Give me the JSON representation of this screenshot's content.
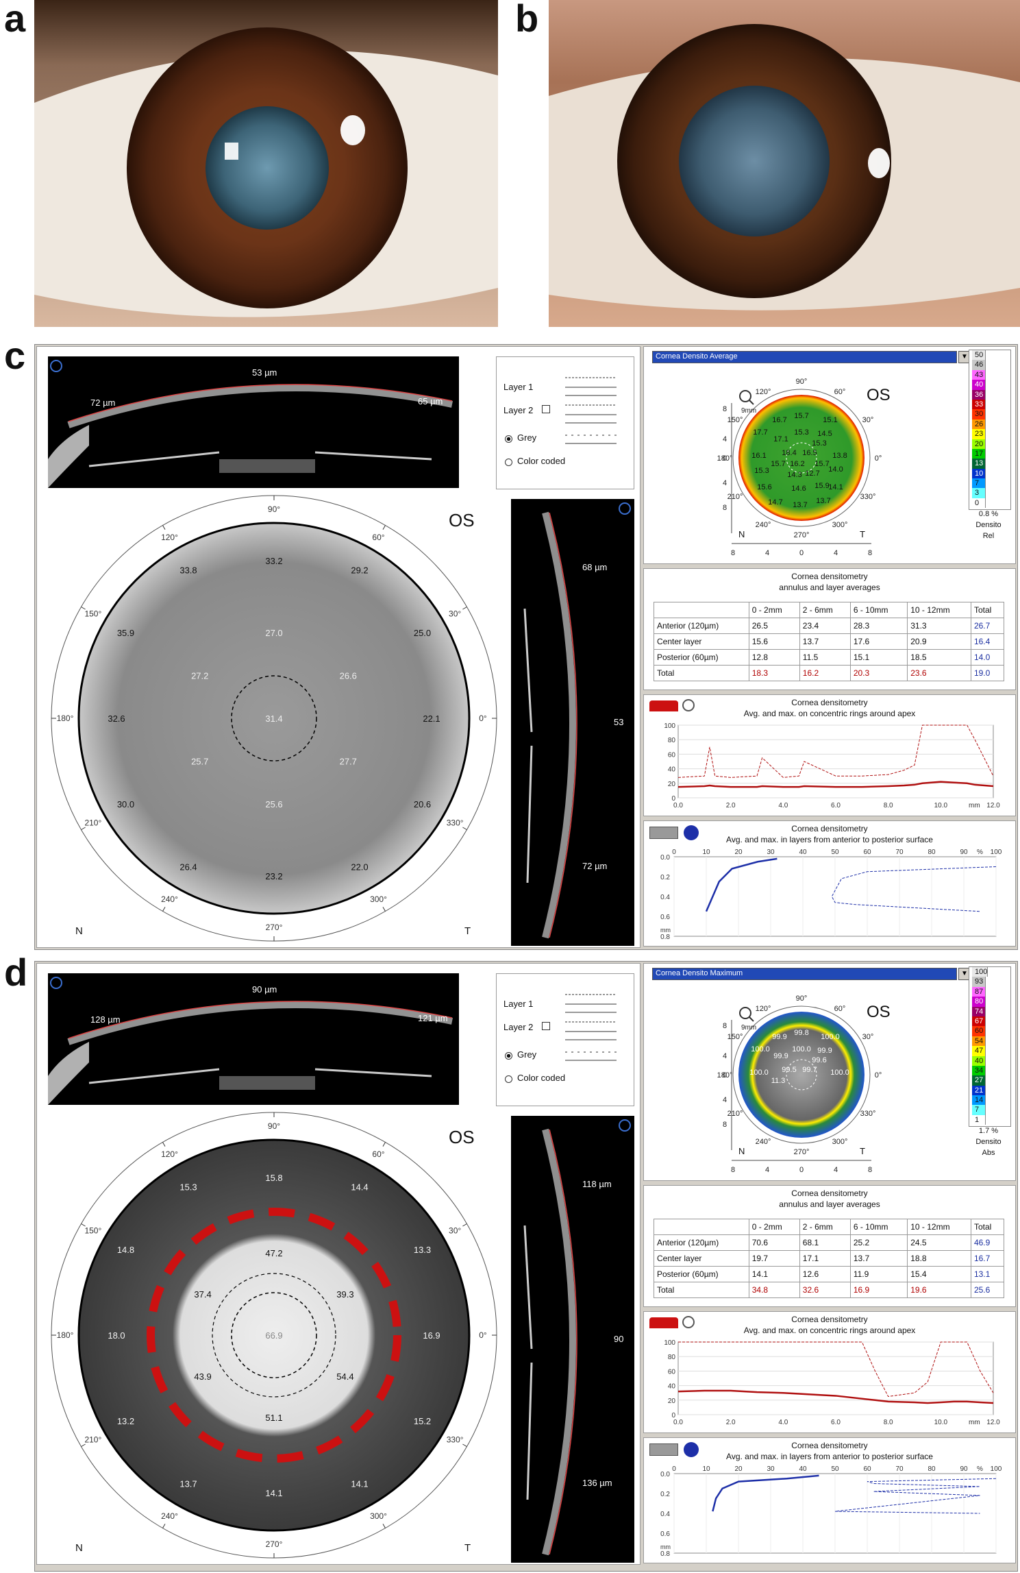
{
  "panel_letters": [
    "a",
    "b",
    "c",
    "d"
  ],
  "panels": [
    {
      "id": "c",
      "scheimpflug_top": {
        "center_thickness": "53 µm",
        "left_thickness": "72 µm",
        "right_thickness": "65 µm"
      },
      "scheimpflug_side": {
        "top_thickness": "68 µm",
        "center_thickness": "53",
        "bottom_thickness": "72 µm"
      },
      "controls": {
        "layer1": "Layer 1",
        "layer2": "Layer 2",
        "grey": "Grey",
        "color_coded": "Color coded"
      },
      "polar": {
        "eye": "OS",
        "nasal": "N",
        "temporal": "T",
        "angles": [
          "90°",
          "60°",
          "30°",
          "0°",
          "330°",
          "300°",
          "270°",
          "240°",
          "210°",
          "180°",
          "150°",
          "120°"
        ],
        "values": [
          "33.2",
          "29.2",
          "25.0",
          "22.1",
          "20.6",
          "22.0",
          "23.2",
          "26.4",
          "30.0",
          "32.6",
          "35.9",
          "33.8",
          "27.0",
          "26.6",
          "27.7",
          "25.6",
          "25.7",
          "27.2",
          "31.4"
        ],
        "highlight_ring": false
      },
      "colormap": {
        "dropdown": "Cornea Densito Average",
        "eye": "OS",
        "zoom": "9mm",
        "nasal": "N",
        "temporal": "T",
        "axis": [
          "8",
          "4",
          "0",
          "4",
          "8"
        ],
        "angles": [
          "90°",
          "60°",
          "30°",
          "0°",
          "330°",
          "300°",
          "270°",
          "240°",
          "210°",
          "180°",
          "150°",
          "120°"
        ],
        "values": [
          "15.7",
          "15.1",
          "16.7",
          "17.7",
          "15.3",
          "14.5",
          "17.1",
          "15.3",
          "16.1",
          "18.4",
          "16.5",
          "13.8",
          "15.7",
          "16.2",
          "15.7",
          "15.3",
          "14.3",
          "12.7",
          "14.0",
          "15.6",
          "15.9",
          "14.6",
          "14.1",
          "14.7",
          "13.7",
          "13.7"
        ],
        "legend": [
          {
            "label": "50",
            "color": "#e8e8e8"
          },
          {
            "label": "46",
            "color": "#c8c8c8"
          },
          {
            "label": "43",
            "color": "#ff66ff"
          },
          {
            "label": "40",
            "color": "#cc00cc"
          },
          {
            "label": "36",
            "color": "#990066"
          },
          {
            "label": "33",
            "color": "#cc0000"
          },
          {
            "label": "30",
            "color": "#ff3300"
          },
          {
            "label": "26",
            "color": "#ff9900"
          },
          {
            "label": "23",
            "color": "#ffff00"
          },
          {
            "label": "20",
            "color": "#99ff00"
          },
          {
            "label": "17",
            "color": "#00cc00"
          },
          {
            "label": "13",
            "color": "#006633"
          },
          {
            "label": "10",
            "color": "#0033cc"
          },
          {
            "label": "7",
            "color": "#0099ff"
          },
          {
            "label": "3",
            "color": "#66ffff"
          },
          {
            "label": "0",
            "color": "#ffffff"
          }
        ],
        "legend_foot": [
          "0.8 %",
          "Densito",
          "Rel"
        ]
      },
      "table": {
        "title1": "Cornea densitometry",
        "title2": "annulus and layer averages",
        "headers": [
          "",
          "0 - 2mm",
          "2 - 6mm",
          "6 - 10mm",
          "10 - 12mm",
          "Total"
        ],
        "rows": [
          [
            "Anterior (120µm)",
            "26.5",
            "23.4",
            "28.3",
            "31.3",
            "26.7"
          ],
          [
            "Center layer",
            "15.6",
            "13.7",
            "17.6",
            "20.9",
            "16.4"
          ],
          [
            "Posterior (60µm)",
            "12.8",
            "11.5",
            "15.1",
            "18.5",
            "14.0"
          ],
          [
            "Total",
            "18.3",
            "16.2",
            "20.3",
            "23.6",
            "19.0"
          ]
        ]
      },
      "rings_chart": {
        "title1": "Cornea densitometry",
        "title2": "Avg. and max. on concentric rings around apex",
        "yticks": [
          "100",
          "80",
          "60",
          "40",
          "20",
          "0"
        ],
        "xticks": [
          "0.0",
          "2.0",
          "4.0",
          "6.0",
          "8.0",
          "10.0",
          "12.0"
        ],
        "unit": "mm",
        "chart_data": {
          "type": "line",
          "x": [
            0,
            1,
            1.2,
            1.4,
            2,
            3,
            3.2,
            4,
            4.6,
            4.8,
            6,
            7,
            8,
            8.6,
            9,
            9.3,
            10,
            10.5,
            11,
            11.3,
            12
          ],
          "series": [
            {
              "values": [
                28,
                30,
                70,
                30,
                28,
                30,
                55,
                28,
                30,
                50,
                30,
                30,
                32,
                38,
                45,
                100,
                100,
                100,
                100,
                80,
                30
              ]
            },
            {
              "values": [
                15,
                16,
                17,
                16,
                15,
                15,
                16,
                15,
                15,
                16,
                15,
                15,
                16,
                17,
                18,
                20,
                22,
                21,
                20,
                18,
                16
              ]
            }
          ],
          "ylim": [
            0,
            100
          ],
          "xlim": [
            0,
            12
          ]
        }
      },
      "layers_chart": {
        "title1": "Cornea densitometry",
        "title2": "Avg. and max. in layers from anterior to posterior surface",
        "xticks": [
          "0",
          "10",
          "20",
          "30",
          "40",
          "50",
          "60",
          "70",
          "80",
          "90",
          "100"
        ],
        "yticks": [
          "0.0",
          "0.2",
          "0.4",
          "0.6",
          "0.8"
        ],
        "ylabel": "mm",
        "unit": "%",
        "chart_data": {
          "type": "line",
          "series": [
            {
              "x": [
                32,
                26,
                18,
                14,
                12,
                10
              ],
              "y": [
                0.02,
                0.05,
                0.12,
                0.25,
                0.4,
                0.55
              ]
            },
            {
              "x": [
                100,
                60,
                52,
                49,
                50,
                56,
                95
              ],
              "y": [
                0.1,
                0.15,
                0.22,
                0.4,
                0.46,
                0.48,
                0.55
              ]
            }
          ],
          "xlim": [
            0,
            100
          ],
          "ylim": [
            0,
            0.8
          ]
        }
      }
    },
    {
      "id": "d",
      "scheimpflug_top": {
        "center_thickness": "90 µm",
        "left_thickness": "128 µm",
        "right_thickness": "121 µm"
      },
      "scheimpflug_side": {
        "top_thickness": "118 µm",
        "center_thickness": "90",
        "bottom_thickness": "136 µm"
      },
      "controls": {
        "layer1": "Layer 1",
        "layer2": "Layer 2",
        "grey": "Grey",
        "color_coded": "Color coded"
      },
      "polar": {
        "eye": "OS",
        "nasal": "N",
        "temporal": "T",
        "angles": [
          "90°",
          "60°",
          "30°",
          "0°",
          "330°",
          "300°",
          "270°",
          "240°",
          "210°",
          "180°",
          "150°",
          "120°"
        ],
        "values": [
          "15.8",
          "14.4",
          "13.3",
          "16.9",
          "15.2",
          "14.1",
          "14.1",
          "13.7",
          "13.2",
          "18.0",
          "14.8",
          "15.3",
          "47.2",
          "39.3",
          "54.4",
          "51.1",
          "43.9",
          "37.4",
          "66.9"
        ],
        "highlight_ring": true
      },
      "colormap": {
        "dropdown": "Cornea Densito Maximum",
        "eye": "OS",
        "zoom": "9mm",
        "nasal": "N",
        "temporal": "T",
        "axis": [
          "8",
          "4",
          "0",
          "4",
          "8"
        ],
        "angles": [
          "90°",
          "60°",
          "30°",
          "0°",
          "330°",
          "300°",
          "270°",
          "240°",
          "210°",
          "180°",
          "150°",
          "120°"
        ],
        "values": [
          "99.8",
          "100.0",
          "99.9",
          "100.0",
          "100.0",
          "99.9",
          "99.9",
          "99.6",
          "100.0",
          "99.5",
          "99.7",
          "100.0",
          "11.3"
        ],
        "legend": [
          {
            "label": "100",
            "color": "#e8e8e8"
          },
          {
            "label": "93",
            "color": "#c8c8c8"
          },
          {
            "label": "87",
            "color": "#ff66ff"
          },
          {
            "label": "80",
            "color": "#cc00cc"
          },
          {
            "label": "74",
            "color": "#990066"
          },
          {
            "label": "67",
            "color": "#cc0000"
          },
          {
            "label": "60",
            "color": "#ff3300"
          },
          {
            "label": "54",
            "color": "#ff9900"
          },
          {
            "label": "47",
            "color": "#ffff00"
          },
          {
            "label": "40",
            "color": "#99ff00"
          },
          {
            "label": "34",
            "color": "#00cc00"
          },
          {
            "label": "27",
            "color": "#006633"
          },
          {
            "label": "21",
            "color": "#0033cc"
          },
          {
            "label": "14",
            "color": "#0099ff"
          },
          {
            "label": "7",
            "color": "#66ffff"
          },
          {
            "label": "1",
            "color": "#ffffff"
          }
        ],
        "legend_foot": [
          "1.7 %",
          "Densito",
          "Abs"
        ]
      },
      "table": {
        "title1": "Cornea densitometry",
        "title2": "annulus and layer averages",
        "headers": [
          "",
          "0 - 2mm",
          "2 - 6mm",
          "6 - 10mm",
          "10 - 12mm",
          "Total"
        ],
        "rows": [
          [
            "Anterior (120µm)",
            "70.6",
            "68.1",
            "25.2",
            "24.5",
            "46.9"
          ],
          [
            "Center layer",
            "19.7",
            "17.1",
            "13.7",
            "18.8",
            "16.7"
          ],
          [
            "Posterior (60µm)",
            "14.1",
            "12.6",
            "11.9",
            "15.4",
            "13.1"
          ],
          [
            "Total",
            "34.8",
            "32.6",
            "16.9",
            "19.6",
            "25.6"
          ]
        ]
      },
      "rings_chart": {
        "title1": "Cornea densitometry",
        "title2": "Avg. and max. on concentric rings around apex",
        "yticks": [
          "100",
          "80",
          "60",
          "40",
          "20",
          "0"
        ],
        "xticks": [
          "0.0",
          "2.0",
          "4.0",
          "6.0",
          "8.0",
          "10.0",
          "12.0"
        ],
        "unit": "mm",
        "chart_data": {
          "type": "line",
          "x": [
            0,
            1,
            2,
            3,
            4,
            5,
            6,
            7,
            7.5,
            8,
            9,
            9.5,
            10,
            10.5,
            11,
            11.5,
            12
          ],
          "series": [
            {
              "values": [
                100,
                100,
                100,
                100,
                100,
                100,
                100,
                100,
                60,
                25,
                30,
                45,
                100,
                100,
                100,
                60,
                30
              ]
            },
            {
              "values": [
                32,
                33,
                33,
                31,
                30,
                28,
                26,
                22,
                20,
                18,
                17,
                16,
                17,
                18,
                18,
                17,
                16
              ]
            }
          ],
          "ylim": [
            0,
            100
          ],
          "xlim": [
            0,
            12
          ]
        }
      },
      "layers_chart": {
        "title1": "Cornea densitometry",
        "title2": "Avg. and max. in layers from anterior to posterior surface",
        "xticks": [
          "0",
          "10",
          "20",
          "30",
          "40",
          "50",
          "60",
          "70",
          "80",
          "90",
          "100"
        ],
        "yticks": [
          "0.0",
          "0.2",
          "0.4",
          "0.6",
          "0.8"
        ],
        "ylabel": "mm",
        "unit": "%",
        "chart_data": {
          "type": "line",
          "series": [
            {
              "x": [
                45,
                35,
                20,
                15,
                13,
                12
              ],
              "y": [
                0.02,
                0.05,
                0.08,
                0.15,
                0.25,
                0.38
              ]
            },
            {
              "x": [
                100,
                60,
                62,
                95,
                62,
                95,
                50,
                95
              ],
              "y": [
                0.05,
                0.08,
                0.1,
                0.13,
                0.18,
                0.22,
                0.38,
                0.4
              ]
            }
          ],
          "xlim": [
            0,
            100
          ],
          "ylim": [
            0,
            0.8
          ]
        }
      }
    }
  ]
}
